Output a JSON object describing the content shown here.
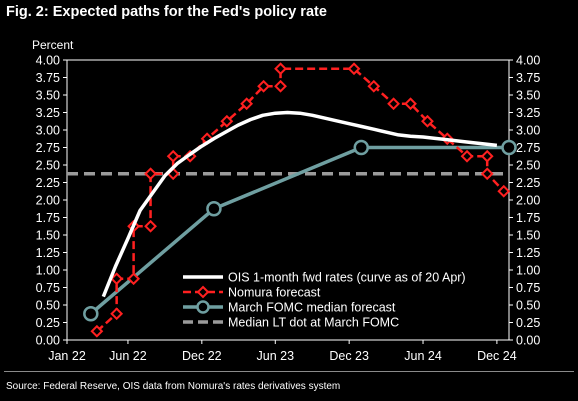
{
  "title": "Fig. 2: Expected paths for the Fed's policy rate",
  "source": "Source: Federal Reserve, OIS data from Nomura's rates derivatives system",
  "chart_data": {
    "type": "line",
    "ylabel": "Percent",
    "xlabel": "",
    "ylim": [
      0,
      4
    ],
    "yticks": [
      "0.00",
      "0.25",
      "0.50",
      "0.75",
      "1.00",
      "1.25",
      "1.50",
      "1.75",
      "2.00",
      "2.25",
      "2.50",
      "2.75",
      "3.00",
      "3.25",
      "3.50",
      "3.75",
      "4.00"
    ],
    "xlim": [
      "2022-01-01",
      "2024-12-31"
    ],
    "xticks": [
      {
        "label": "Jan 22",
        "date": "2022-01-01"
      },
      {
        "label": "Jun 22",
        "date": "2022-06-01"
      },
      {
        "label": "Dec 22",
        "date": "2022-12-01"
      },
      {
        "label": "Jun 23",
        "date": "2023-06-01"
      },
      {
        "label": "Dec 23",
        "date": "2023-12-01"
      },
      {
        "label": "Jun 24",
        "date": "2024-06-01"
      },
      {
        "label": "Dec 24",
        "date": "2024-12-01"
      }
    ],
    "grid": false,
    "legend_position": "bottom-right",
    "series": [
      {
        "name": "OIS 1-month fwd rates (curve as of 20 Apr)",
        "style": "line",
        "color": "#ffffff",
        "points": [
          [
            "2022-04-01",
            0.62
          ],
          [
            "2022-05-01",
            1.05
          ],
          [
            "2022-06-01",
            1.45
          ],
          [
            "2022-07-01",
            1.85
          ],
          [
            "2022-08-01",
            2.1
          ],
          [
            "2022-09-01",
            2.35
          ],
          [
            "2022-10-01",
            2.52
          ],
          [
            "2022-11-01",
            2.65
          ],
          [
            "2022-12-01",
            2.77
          ],
          [
            "2023-01-01",
            2.88
          ],
          [
            "2023-02-01",
            2.98
          ],
          [
            "2023-03-01",
            3.07
          ],
          [
            "2023-04-01",
            3.15
          ],
          [
            "2023-05-01",
            3.21
          ],
          [
            "2023-06-01",
            3.24
          ],
          [
            "2023-07-01",
            3.25
          ],
          [
            "2023-08-01",
            3.24
          ],
          [
            "2023-09-01",
            3.21
          ],
          [
            "2023-10-01",
            3.17
          ],
          [
            "2023-11-01",
            3.13
          ],
          [
            "2023-12-01",
            3.09
          ],
          [
            "2024-01-01",
            3.05
          ],
          [
            "2024-02-01",
            3.01
          ],
          [
            "2024-03-01",
            2.97
          ],
          [
            "2024-04-01",
            2.93
          ],
          [
            "2024-05-01",
            2.91
          ],
          [
            "2024-06-01",
            2.9
          ],
          [
            "2024-07-01",
            2.88
          ],
          [
            "2024-08-01",
            2.86
          ],
          [
            "2024-09-01",
            2.84
          ],
          [
            "2024-10-01",
            2.82
          ],
          [
            "2024-11-01",
            2.8
          ],
          [
            "2024-12-01",
            2.78
          ]
        ]
      },
      {
        "name": "Nomura forecast",
        "style": "dashed-step-diamond",
        "color": "#ff2020",
        "points": [
          [
            "2022-03-16",
            0.125
          ],
          [
            "2022-05-04",
            0.375
          ],
          [
            "2022-05-04",
            0.875
          ],
          [
            "2022-06-15",
            0.875
          ],
          [
            "2022-06-15",
            1.625
          ],
          [
            "2022-07-27",
            1.625
          ],
          [
            "2022-07-27",
            2.375
          ],
          [
            "2022-09-21",
            2.375
          ],
          [
            "2022-09-21",
            2.625
          ],
          [
            "2022-11-02",
            2.625
          ],
          [
            "2022-11-02",
            2.625
          ],
          [
            "2022-12-14",
            2.875
          ],
          [
            "2023-02-01",
            3.125
          ],
          [
            "2023-03-22",
            3.375
          ],
          [
            "2023-05-03",
            3.625
          ],
          [
            "2023-06-14",
            3.625
          ],
          [
            "2023-06-14",
            3.875
          ],
          [
            "2023-12-13",
            3.875
          ],
          [
            "2024-01-31",
            3.625
          ],
          [
            "2024-03-20",
            3.375
          ],
          [
            "2024-05-01",
            3.375
          ],
          [
            "2024-06-12",
            3.125
          ],
          [
            "2024-07-31",
            2.875
          ],
          [
            "2024-09-18",
            2.625
          ],
          [
            "2024-11-07",
            2.625
          ],
          [
            "2024-11-07",
            2.375
          ],
          [
            "2024-12-18",
            2.125
          ]
        ],
        "markers": [
          [
            "2022-03-16",
            0.125
          ],
          [
            "2022-05-04",
            0.375
          ],
          [
            "2022-05-04",
            0.875
          ],
          [
            "2022-06-15",
            0.875
          ],
          [
            "2022-06-15",
            1.625
          ],
          [
            "2022-07-27",
            1.625
          ],
          [
            "2022-07-27",
            2.375
          ],
          [
            "2022-09-21",
            2.375
          ],
          [
            "2022-09-21",
            2.625
          ],
          [
            "2022-11-02",
            2.625
          ],
          [
            "2022-12-14",
            2.875
          ],
          [
            "2023-02-01",
            3.125
          ],
          [
            "2023-03-22",
            3.375
          ],
          [
            "2023-05-03",
            3.625
          ],
          [
            "2023-06-14",
            3.625
          ],
          [
            "2023-06-14",
            3.875
          ],
          [
            "2023-12-13",
            3.875
          ],
          [
            "2024-01-31",
            3.625
          ],
          [
            "2024-03-20",
            3.375
          ],
          [
            "2024-05-01",
            3.375
          ],
          [
            "2024-06-12",
            3.125
          ],
          [
            "2024-07-31",
            2.875
          ],
          [
            "2024-09-18",
            2.625
          ],
          [
            "2024-11-07",
            2.625
          ],
          [
            "2024-11-07",
            2.375
          ],
          [
            "2024-12-18",
            2.125
          ]
        ]
      },
      {
        "name": "March FOMC median forecast",
        "style": "line-circle",
        "color": "#6f9fa1",
        "points": [
          [
            "2022-03-01",
            0.375
          ],
          [
            "2022-12-31",
            1.875
          ],
          [
            "2023-12-31",
            2.75
          ],
          [
            "2024-12-31",
            2.75
          ]
        ]
      },
      {
        "name": "Median LT dot at March FOMC",
        "style": "dashed-horizontal",
        "color": "#9b9b9b",
        "value": 2.375
      }
    ]
  }
}
